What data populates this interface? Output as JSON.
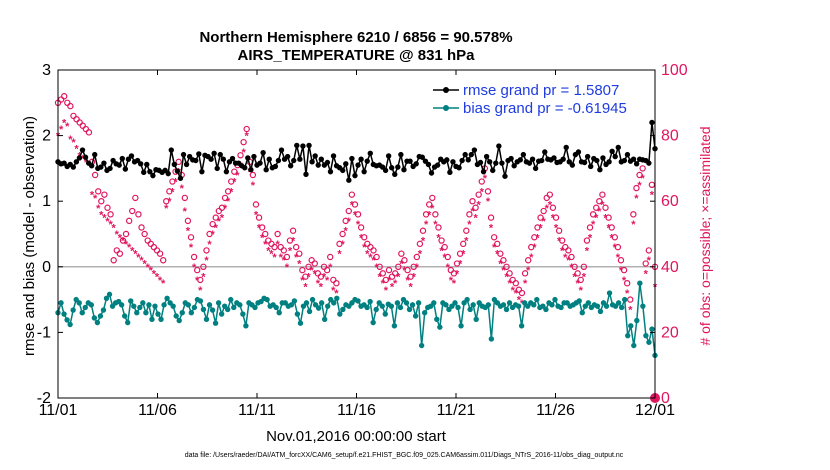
{
  "chart_data": {
    "type": "line",
    "title_line1": "Northern Hemisphere 6210 / 6856 = 90.578%",
    "title_line2": "AIRS_TEMPERATURE @ 831 hPa",
    "xlabel": "Nov.01,2016 00:00:00 start",
    "ylabel": "rmse and bias (model - observation)",
    "y2label": "# of obs: o=possible; ×=assimilated",
    "footer": "data file: /Users/raeder/DAI/ATM_forcXX/CAM6_setup/f.e21.FHIST_BGC.f09_025.CAM6assim.011/Diags_NTrS_2016-11/obs_diag_output.nc",
    "xlim": [
      0,
      30
    ],
    "ylim": [
      -2,
      3
    ],
    "y2lim": [
      0,
      100
    ],
    "x_ticks": [
      {
        "v": 0,
        "label": "11/01"
      },
      {
        "v": 5,
        "label": "11/06"
      },
      {
        "v": 10,
        "label": "11/11"
      },
      {
        "v": 15,
        "label": "11/16"
      },
      {
        "v": 20,
        "label": "11/21"
      },
      {
        "v": 25,
        "label": "11/26"
      },
      {
        "v": 30,
        "label": "12/01"
      }
    ],
    "y_ticks": [
      {
        "v": -2,
        "label": "-2"
      },
      {
        "v": -1,
        "label": "-1"
      },
      {
        "v": 0,
        "label": "0"
      },
      {
        "v": 1,
        "label": "1"
      },
      {
        "v": 2,
        "label": "2"
      },
      {
        "v": 3,
        "label": "3"
      }
    ],
    "y2_ticks": [
      {
        "v": 0,
        "label": "0"
      },
      {
        "v": 20,
        "label": "20"
      },
      {
        "v": 40,
        "label": "40"
      },
      {
        "v": 60,
        "label": "60"
      },
      {
        "v": 80,
        "label": "80"
      },
      {
        "v": 100,
        "label": "100"
      }
    ],
    "legend": [
      {
        "name": "rmse grand pr = 1.5807",
        "color": "#000000"
      },
      {
        "name": "bias grand pr = -0.61945",
        "color": "#008080"
      }
    ],
    "colors": {
      "rmse": "#000000",
      "bias": "#008080",
      "obs": "#e0165e",
      "zero_line": "#b0b0b0"
    },
    "series": [
      {
        "name": "rmse",
        "axis": "left",
        "values": [
          1.6,
          1.57,
          1.58,
          1.53,
          1.56,
          1.52,
          1.6,
          1.66,
          1.78,
          1.67,
          1.58,
          1.54,
          1.71,
          1.5,
          1.52,
          1.58,
          1.47,
          1.5,
          1.62,
          1.57,
          1.55,
          1.65,
          1.49,
          1.64,
          1.69,
          1.6,
          1.62,
          1.57,
          1.44,
          1.56,
          1.45,
          1.39,
          1.48,
          1.47,
          1.44,
          1.47,
          1.42,
          1.78,
          1.56,
          1.46,
          1.35,
          1.71,
          1.56,
          1.68,
          1.63,
          1.62,
          1.72,
          1.45,
          1.7,
          1.68,
          1.64,
          1.73,
          1.5,
          1.71,
          1.64,
          1.45,
          1.6,
          1.65,
          1.58,
          1.58,
          1.54,
          1.51,
          1.66,
          1.48,
          1.68,
          1.55,
          1.58,
          1.74,
          1.48,
          1.64,
          1.51,
          1.53,
          1.62,
          1.78,
          1.64,
          1.68,
          1.54,
          1.62,
          1.85,
          1.64,
          1.84,
          1.41,
          1.85,
          1.6,
          1.69,
          1.55,
          1.64,
          1.55,
          1.59,
          1.45,
          1.69,
          1.54,
          1.51,
          1.47,
          1.57,
          1.32,
          1.65,
          1.39,
          1.55,
          1.64,
          1.45,
          1.61,
          1.73,
          1.56,
          1.54,
          1.55,
          1.52,
          1.47,
          1.69,
          1.51,
          1.41,
          1.52,
          1.71,
          1.48,
          1.61,
          1.61,
          1.53,
          1.57,
          1.68,
          1.67,
          1.61,
          1.56,
          1.43,
          1.52,
          1.55,
          1.64,
          1.6,
          1.63,
          1.44,
          1.6,
          1.53,
          1.51,
          1.62,
          1.71,
          1.63,
          1.71,
          1.78,
          1.56,
          1.59,
          1.45,
          1.68,
          1.6,
          1.47,
          1.58,
          1.84,
          1.58,
          1.38,
          1.62,
          1.65,
          1.54,
          1.6,
          1.63,
          1.71,
          1.6,
          1.58,
          1.64,
          1.5,
          1.61,
          1.62,
          1.75,
          1.64,
          1.63,
          1.66,
          1.59,
          1.6,
          1.64,
          1.82,
          1.6,
          1.55,
          1.71,
          1.75,
          1.6,
          1.59,
          1.68,
          1.53,
          1.65,
          1.62,
          1.48,
          1.66,
          1.56,
          1.6,
          1.76,
          1.68,
          1.82,
          1.6,
          1.62,
          1.71,
          1.61,
          1.64,
          1.57,
          1.64,
          1.63,
          1.62,
          1.58,
          2.2,
          1.8
        ]
      },
      {
        "name": "bias",
        "axis": "left",
        "values": [
          -0.7,
          -0.55,
          -0.72,
          -0.81,
          -0.88,
          -0.66,
          -0.5,
          -0.55,
          -0.7,
          -0.62,
          -0.55,
          -0.58,
          -0.78,
          -0.85,
          -0.75,
          -0.66,
          -0.48,
          -0.42,
          -0.6,
          -0.55,
          -0.53,
          -0.58,
          -0.75,
          -0.85,
          -0.52,
          -0.6,
          -0.7,
          -0.62,
          -0.55,
          -0.7,
          -0.58,
          -0.8,
          -0.6,
          -0.72,
          -0.8,
          -0.58,
          -0.48,
          -0.55,
          -0.6,
          -0.75,
          -0.82,
          -0.7,
          -0.55,
          -0.58,
          -0.7,
          -0.62,
          -0.5,
          -0.52,
          -0.65,
          -0.8,
          -0.58,
          -0.66,
          -0.86,
          -0.55,
          -0.72,
          -0.6,
          -0.65,
          -0.5,
          -0.62,
          -0.55,
          -0.58,
          -0.72,
          -0.9,
          -0.55,
          -0.58,
          -0.62,
          -0.55,
          -0.53,
          -0.48,
          -0.5,
          -0.6,
          -0.58,
          -0.62,
          -0.7,
          -0.55,
          -0.55,
          -0.6,
          -0.58,
          -0.52,
          -0.72,
          -0.86,
          -0.6,
          -0.55,
          -0.68,
          -0.5,
          -0.58,
          -0.63,
          -0.55,
          -0.8,
          -0.6,
          -0.5,
          -0.55,
          -0.48,
          -0.72,
          -0.65,
          -0.58,
          -0.6,
          -0.55,
          -0.5,
          -0.52,
          -0.6,
          -0.58,
          -0.62,
          -0.53,
          -0.85,
          -0.65,
          -0.55,
          -0.6,
          -0.72,
          -0.57,
          -0.6,
          -0.9,
          -0.55,
          -0.62,
          -0.5,
          -0.55,
          -0.65,
          -0.58,
          -0.75,
          -0.55,
          -1.2,
          -0.7,
          -0.62,
          -0.6,
          -0.55,
          -0.8,
          -0.92,
          -0.55,
          -0.58,
          -0.65,
          -0.6,
          -0.55,
          -0.62,
          -0.9,
          -0.55,
          -0.5,
          -0.65,
          -0.58,
          -0.8,
          -0.55,
          -0.6,
          -0.62,
          -0.58,
          -1.1,
          -0.5,
          -0.55,
          -0.6,
          -0.58,
          -0.65,
          -0.55,
          -0.62,
          -0.58,
          -0.6,
          -0.9,
          -0.55,
          -0.6,
          -0.55,
          -0.58,
          -0.5,
          -0.62,
          -0.6,
          -0.65,
          -0.55,
          -0.58,
          -0.5,
          -0.6,
          -0.62,
          -0.55,
          -0.55,
          -0.6,
          -0.58,
          -0.55,
          -0.52,
          -0.7,
          -0.6,
          -0.55,
          -0.62,
          -0.58,
          -0.6,
          -0.68,
          -0.55,
          -0.6,
          -0.4,
          -0.58,
          -0.6,
          -0.55,
          -0.62,
          -0.5,
          -1.05,
          -0.9,
          -1.2,
          -0.82,
          -0.25,
          -0.6,
          -1.05,
          -1.15,
          -0.95,
          -1.35
        ]
      },
      {
        "name": "obs possible (o)",
        "axis": "right",
        "values": [
          90,
          91,
          92,
          90,
          89,
          86,
          85,
          84,
          83,
          82,
          81,
          72,
          68,
          63,
          60,
          62,
          58,
          56,
          42,
          45,
          44,
          48,
          50,
          54,
          57,
          61,
          56,
          52,
          50,
          48,
          47,
          46,
          45,
          44,
          42,
          60,
          63,
          66,
          69,
          72,
          68,
          61,
          54,
          49,
          43,
          39,
          36,
          40,
          45,
          50,
          53,
          55,
          57,
          58,
          61,
          63,
          66,
          69,
          71,
          74,
          78,
          82,
          72,
          68,
          59,
          55,
          52,
          50,
          48,
          47,
          46,
          50,
          46,
          45,
          43,
          48,
          51,
          46,
          44,
          39,
          37,
          40,
          42,
          41,
          38,
          37,
          40,
          39,
          43,
          36,
          35,
          47,
          50,
          54,
          57,
          62,
          59,
          56,
          52,
          49,
          47,
          46,
          45,
          43,
          40,
          38,
          36,
          39,
          37,
          38,
          40,
          44,
          42,
          39,
          37,
          40,
          43,
          47,
          51,
          56,
          59,
          61,
          56,
          52,
          48,
          46,
          43,
          39,
          38,
          41,
          44,
          47,
          51,
          56,
          60,
          58,
          62,
          66,
          70,
          63,
          55,
          49,
          47,
          44,
          42,
          40,
          38,
          36,
          35,
          33,
          32,
          38,
          42,
          46,
          49,
          52,
          55,
          57,
          61,
          62,
          58,
          55,
          51,
          48,
          46,
          45,
          43,
          40,
          38,
          36,
          40,
          48,
          52,
          56,
          58,
          60,
          62,
          58,
          55,
          52,
          49,
          46,
          42,
          39,
          35,
          30,
          56,
          64,
          68,
          70,
          41,
          45,
          65,
          40
        ]
      },
      {
        "name": "obs assimilated (×)",
        "axis": "right",
        "values": [
          80,
          82,
          84,
          83,
          79,
          78,
          76,
          74,
          73,
          72,
          71,
          62,
          61,
          58,
          56,
          55,
          54,
          53,
          52,
          50,
          49,
          48,
          47,
          46,
          45,
          44,
          43,
          42,
          41,
          40,
          39,
          38,
          37,
          36,
          35,
          58,
          60,
          63,
          66,
          69,
          64,
          57,
          51,
          46,
          40,
          36,
          33,
          37,
          42,
          47,
          50,
          52,
          54,
          55,
          58,
          60,
          63,
          66,
          68,
          71,
          75,
          80,
          69,
          65,
          56,
          52,
          49,
          47,
          45,
          44,
          43,
          47,
          43,
          42,
          40,
          45,
          48,
          43,
          41,
          36,
          34,
          37,
          39,
          38,
          35,
          34,
          37,
          36,
          40,
          33,
          32,
          44,
          47,
          51,
          54,
          59,
          56,
          53,
          49,
          46,
          44,
          43,
          42,
          40,
          37,
          35,
          33,
          36,
          34,
          35,
          37,
          41,
          39,
          36,
          34,
          37,
          40,
          44,
          48,
          53,
          56,
          58,
          53,
          49,
          45,
          43,
          40,
          36,
          35,
          38,
          41,
          44,
          48,
          53,
          57,
          55,
          59,
          63,
          67,
          60,
          52,
          46,
          44,
          41,
          39,
          37,
          35,
          33,
          32,
          30,
          29,
          35,
          39,
          43,
          46,
          49,
          52,
          54,
          58,
          59,
          55,
          52,
          48,
          45,
          43,
          42,
          40,
          37,
          35,
          33,
          37,
          45,
          49,
          53,
          55,
          57,
          59,
          55,
          52,
          49,
          46,
          43,
          39,
          36,
          32,
          27,
          53,
          61,
          65,
          67,
          38,
          42,
          62,
          34
        ]
      }
    ]
  }
}
